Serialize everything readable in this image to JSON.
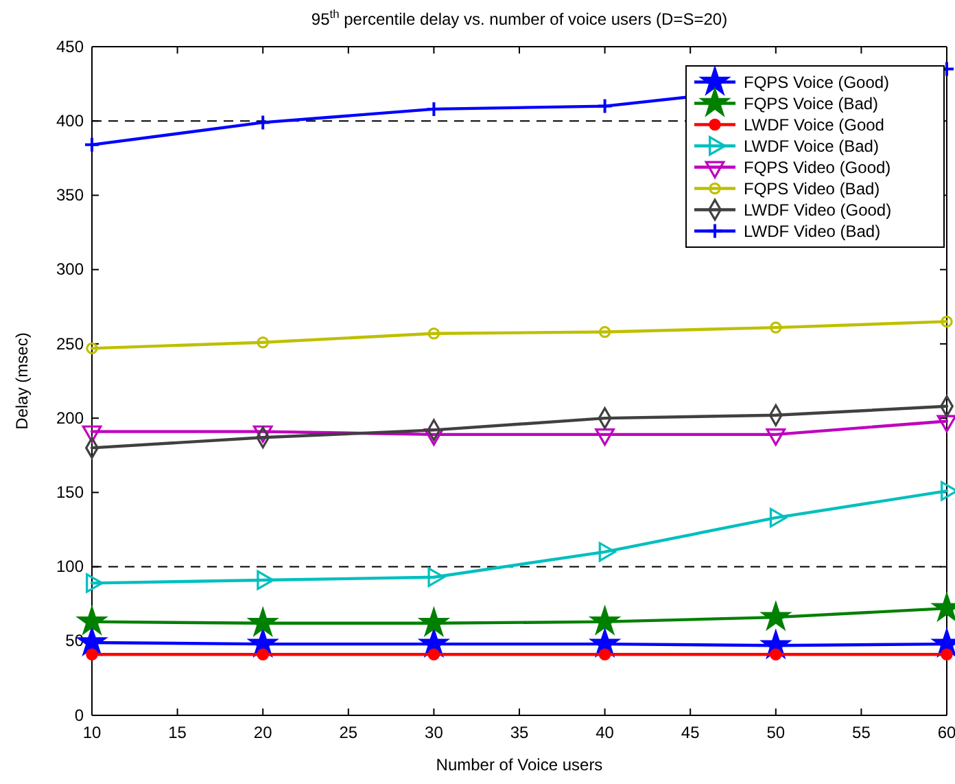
{
  "chart_data": {
    "type": "line",
    "title": "95$^{th}$ percentile delay vs. number of voice users (D=S=20)",
    "xlabel": "Number of Voice users",
    "ylabel": "Delay (msec)",
    "x": [
      10,
      20,
      30,
      40,
      50,
      60
    ],
    "xlim": [
      10,
      60
    ],
    "xticks": [
      10,
      15,
      20,
      25,
      30,
      35,
      40,
      45,
      50,
      55,
      60
    ],
    "ylim": [
      0,
      450
    ],
    "yticks": [
      0,
      50,
      100,
      150,
      200,
      250,
      300,
      350,
      400,
      450
    ],
    "grid": false,
    "legend": "top right",
    "line_style": "solid",
    "ref_lines": [
      {
        "axis": "y",
        "value": 100,
        "color": "#000000",
        "line_style": "dashed"
      },
      {
        "axis": "y",
        "value": 400,
        "color": "#000000",
        "line_style": "dashed"
      }
    ],
    "series": [
      {
        "name": "FQPS Voice (Good)",
        "color": "#0000ff",
        "marker": "star",
        "values": [
          49,
          48,
          48,
          48,
          47,
          48
        ]
      },
      {
        "name": "FQPS Voice (Bad)",
        "color": "#008000",
        "marker": "star",
        "values": [
          63,
          62,
          62,
          63,
          66,
          72
        ]
      },
      {
        "name": "LWDF Voice (Good",
        "color": "#ff0000",
        "marker": "circle",
        "values": [
          41,
          41,
          41,
          41,
          41,
          41
        ]
      },
      {
        "name": "LWDF Voice (Bad)",
        "color": "#00bfbf",
        "marker": "triangle",
        "values": [
          89,
          91,
          93,
          110,
          133,
          151
        ]
      },
      {
        "name": "FQPS Video (Good)",
        "color": "#bf00bf",
        "marker": "triangle",
        "values": [
          191,
          191,
          189,
          189,
          189,
          198
        ]
      },
      {
        "name": "FQPS Video (Bad)",
        "color": "#bfbf00",
        "marker": "circle",
        "values": [
          247,
          251,
          257,
          258,
          261,
          265
        ]
      },
      {
        "name": "LWDF Video (Good)",
        "color": "#404040",
        "marker": "diamond",
        "values": [
          180,
          187,
          192,
          200,
          202,
          208
        ]
      },
      {
        "name": "LWDF Video (Bad)",
        "color": "#0000ff",
        "marker": "cross",
        "values": [
          384,
          399,
          408,
          410,
          null,
          435
        ]
      }
    ]
  }
}
